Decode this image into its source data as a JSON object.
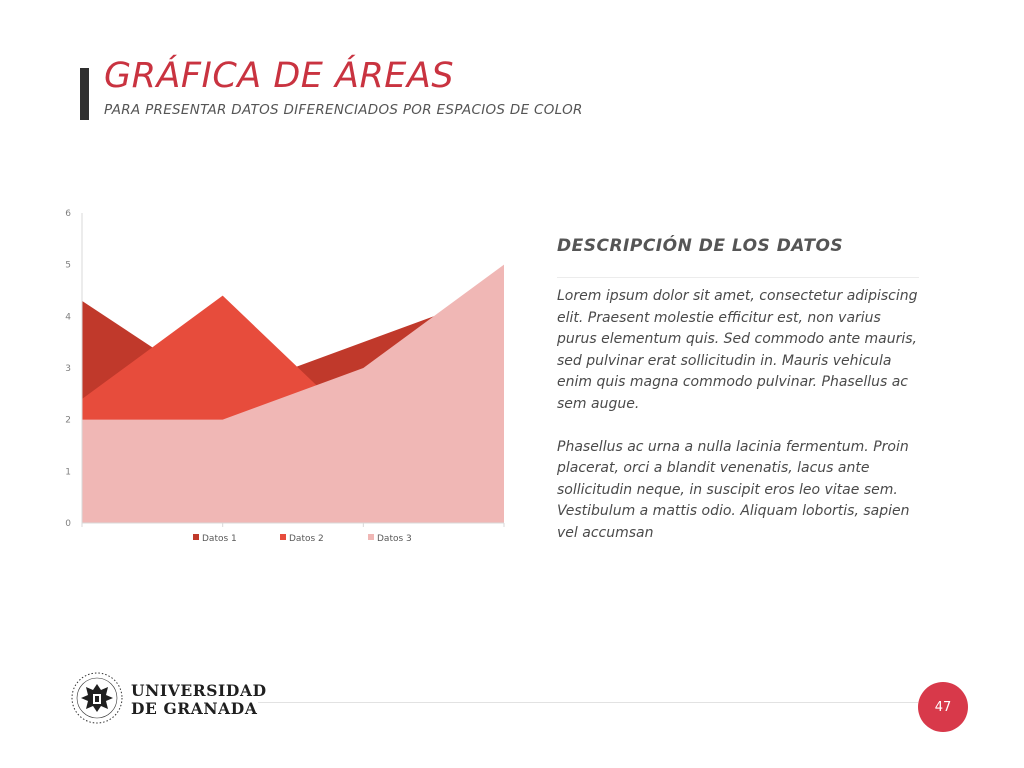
{
  "header": {
    "title": "GRÁFICA DE ÁREAS",
    "subtitle": "PARA PRESENTAR DATOS DIFERENCIADOS POR ESPACIOS DE COLOR"
  },
  "chart_data": {
    "type": "area",
    "categories": [
      "",
      "",
      "",
      ""
    ],
    "series": [
      {
        "name": "Datos 1",
        "color": "#c0392b",
        "values": [
          4.3,
          2.5,
          3.5,
          4.5
        ]
      },
      {
        "name": "Datos 2",
        "color": "#e74c3c",
        "values": [
          2.4,
          4.4,
          1.8,
          2.8
        ]
      },
      {
        "name": "Datos 3",
        "color": "#f0b7b5",
        "values": [
          2.0,
          2.0,
          3.0,
          5.0
        ]
      }
    ],
    "yticks": [
      "0",
      "1",
      "2",
      "3",
      "4",
      "5",
      "6"
    ],
    "ylim": [
      0,
      6
    ],
    "grid": false,
    "legend": "bottom",
    "title": "",
    "xlabel": "",
    "ylabel": ""
  },
  "description": {
    "title": "DESCRIPCIÓN DE LOS DATOS",
    "paragraphs": [
      "Lorem ipsum dolor sit amet, consectetur adipiscing elit. Praesent molestie efficitur est, non varius purus elementum quis. Sed commodo ante mauris, sed pulvinar erat sollicitudin in. Mauris vehicula enim quis magna commodo pulvinar. Phasellus ac sem augue.",
      "Phasellus ac urna a nulla lacinia fermentum. Proin placerat, orci a blandit venenatis, lacus ante sollicitudin neque, in suscipit eros leo vitae sem. Vestibulum a mattis odio. Aliquam lobortis, sapien vel accumsan"
    ]
  },
  "footer": {
    "logo_line1": "UNIVERSIDAD",
    "logo_line2": "DE GRANADA",
    "page_number": "47"
  }
}
